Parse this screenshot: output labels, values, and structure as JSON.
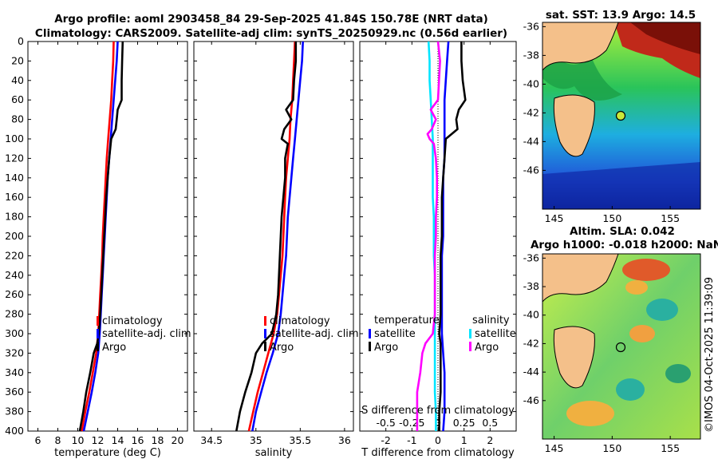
{
  "title": {
    "line1": "Argo profile: aoml 2903458_84 29-Sep-2025 41.84S 150.78E (NRT data)",
    "line2": "Climatology: CARS2009. Satellite-adj clim: synTS_20250929.nc (0.56d earlier)"
  },
  "y_ticks": [
    "0",
    "20",
    "40",
    "60",
    "80",
    "100",
    "120",
    "140",
    "160",
    "180",
    "200",
    "220",
    "240",
    "260",
    "280",
    "300",
    "320",
    "340",
    "360",
    "380",
    "400"
  ],
  "legend": {
    "clim": "climatology",
    "sat": "satellite-adj. clim",
    "argo": "Argo",
    "temperature": "temperature",
    "salinity": "salinity",
    "satellite": "satellite",
    "argo2": "Argo"
  },
  "colors": {
    "clim": "#ff0000",
    "sat": "#0000ff",
    "argo": "#000000",
    "sat_s": "#00e5ff",
    "argo_s": "#ff00ff"
  },
  "maps": {
    "sst_title": "sat. SST: 13.9 Argo: 14.5",
    "sla_title1": "Altim. SLA: 0.042",
    "sla_title2": "Argo h1000: -0.018 h2000: NaN",
    "y_ticks": [
      "-36",
      "-38",
      "-40",
      "-42",
      "-44",
      "-46"
    ],
    "x_ticks": [
      "145",
      "150",
      "155"
    ]
  },
  "credit": "©IMOS 04-Oct-2025 11:39:09",
  "chart_data": [
    {
      "type": "line",
      "xlabel": "temperature (deg C)",
      "ylabel": "depth",
      "xlim": [
        5,
        21
      ],
      "ylim": [
        400,
        0
      ],
      "x_ticks": [
        "6",
        "8",
        "10",
        "12",
        "14",
        "16",
        "18",
        "20"
      ],
      "series": [
        {
          "name": "climatology",
          "key": "clim",
          "depth": [
            0,
            20,
            40,
            60,
            80,
            100,
            120,
            140,
            160,
            180,
            200,
            220,
            240,
            260,
            280,
            300,
            320,
            340,
            360,
            380,
            400
          ],
          "values": [
            13.6,
            13.55,
            13.45,
            13.35,
            13.2,
            13.05,
            12.9,
            12.8,
            12.7,
            12.6,
            12.5,
            12.45,
            12.35,
            12.25,
            12.15,
            12.05,
            11.85,
            11.5,
            11.15,
            10.75,
            10.4
          ]
        },
        {
          "name": "satellite-adj. clim",
          "key": "sat",
          "depth": [
            0,
            20,
            40,
            60,
            80,
            100,
            120,
            140,
            160,
            180,
            200,
            220,
            240,
            260,
            280,
            300,
            320,
            340,
            360,
            380,
            400
          ],
          "values": [
            14.0,
            13.9,
            13.75,
            13.6,
            13.45,
            13.3,
            13.15,
            13.0,
            12.9,
            12.8,
            12.7,
            12.6,
            12.5,
            12.4,
            12.3,
            12.2,
            12.05,
            11.75,
            11.4,
            11.0,
            10.6
          ]
        },
        {
          "name": "Argo",
          "key": "argo",
          "depth": [
            0,
            20,
            40,
            60,
            70,
            80,
            90,
            100,
            120,
            140,
            160,
            180,
            200,
            220,
            240,
            260,
            280,
            300,
            310,
            320,
            340,
            360,
            380,
            400
          ],
          "values": [
            14.5,
            14.45,
            14.4,
            14.4,
            14.0,
            13.9,
            13.8,
            13.35,
            13.15,
            13.0,
            12.85,
            12.75,
            12.65,
            12.55,
            12.45,
            12.35,
            12.25,
            12.1,
            11.95,
            11.6,
            11.25,
            10.85,
            10.55,
            10.2
          ]
        }
      ]
    },
    {
      "type": "line",
      "xlabel": "salinity",
      "ylabel": "depth",
      "xlim": [
        34.3,
        36.1
      ],
      "ylim": [
        400,
        0
      ],
      "x_ticks": [
        "34.5",
        "35",
        "35.5",
        "36"
      ],
      "series": [
        {
          "name": "climatology",
          "key": "clim",
          "depth": [
            0,
            20,
            40,
            60,
            80,
            100,
            120,
            140,
            160,
            180,
            200,
            220,
            240,
            260,
            280,
            300,
            320,
            340,
            360,
            380,
            400
          ],
          "values": [
            35.44,
            35.43,
            35.42,
            35.41,
            35.39,
            35.38,
            35.36,
            35.34,
            35.33,
            35.32,
            35.31,
            35.3,
            35.28,
            35.26,
            35.24,
            35.2,
            35.14,
            35.08,
            35.02,
            34.97,
            34.92
          ]
        },
        {
          "name": "satellite-adj. clim",
          "key": "sat",
          "depth": [
            0,
            20,
            40,
            60,
            80,
            100,
            120,
            140,
            160,
            180,
            200,
            220,
            240,
            260,
            280,
            300,
            320,
            340,
            360,
            380,
            400
          ],
          "values": [
            35.53,
            35.52,
            35.5,
            35.48,
            35.46,
            35.44,
            35.42,
            35.4,
            35.38,
            35.36,
            35.35,
            35.34,
            35.32,
            35.3,
            35.28,
            35.25,
            35.19,
            35.12,
            35.06,
            35.0,
            34.96
          ]
        },
        {
          "name": "Argo",
          "key": "argo",
          "depth": [
            0,
            20,
            40,
            60,
            70,
            80,
            90,
            100,
            105,
            120,
            140,
            160,
            180,
            200,
            220,
            240,
            260,
            280,
            300,
            310,
            320,
            340,
            360,
            380,
            400
          ],
          "values": [
            35.45,
            35.45,
            35.43,
            35.42,
            35.34,
            35.4,
            35.32,
            35.29,
            35.36,
            35.33,
            35.33,
            35.31,
            35.29,
            35.28,
            35.27,
            35.26,
            35.25,
            35.23,
            35.18,
            35.07,
            35.0,
            34.95,
            34.88,
            34.82,
            34.78
          ]
        }
      ]
    },
    {
      "type": "line",
      "xlabel": "T difference from climatology",
      "x2label": "S difference from climatology",
      "ylabel": "depth",
      "xlim": [
        -3,
        3
      ],
      "ylim": [
        400,
        0
      ],
      "x_ticks": [
        "-2",
        "-1",
        "0",
        "1",
        "2"
      ],
      "x2_ticks": [
        "-0.5",
        "-0.25",
        "0",
        "0.25",
        "0.5"
      ],
      "series": [
        {
          "name": "temperature satellite",
          "key": "sat",
          "depth": [
            0,
            20,
            40,
            60,
            80,
            100,
            120,
            140,
            160,
            180,
            200,
            220,
            240,
            260,
            280,
            300,
            320,
            340,
            360,
            380,
            400
          ],
          "values": [
            0.4,
            0.35,
            0.3,
            0.25,
            0.25,
            0.25,
            0.25,
            0.2,
            0.2,
            0.2,
            0.2,
            0.15,
            0.15,
            0.15,
            0.15,
            0.15,
            0.2,
            0.25,
            0.25,
            0.25,
            0.2
          ]
        },
        {
          "name": "temperature Argo",
          "key": "argo",
          "depth": [
            0,
            20,
            40,
            60,
            70,
            80,
            90,
            100,
            120,
            140,
            160,
            180,
            200,
            220,
            240,
            260,
            280,
            300,
            310,
            320,
            340,
            360,
            380,
            400
          ],
          "values": [
            0.9,
            0.9,
            0.95,
            1.05,
            0.8,
            0.7,
            0.75,
            0.3,
            0.25,
            0.2,
            0.15,
            0.15,
            0.15,
            0.1,
            0.1,
            0.1,
            0.1,
            0.05,
            0.1,
            0.1,
            0.1,
            0.1,
            0.05,
            0.05
          ]
        },
        {
          "name": "salinity satellite",
          "key": "sat_s",
          "depth": [
            0,
            20,
            40,
            60,
            80,
            100,
            120,
            140,
            160,
            180,
            200,
            220,
            240,
            260,
            280,
            300,
            320,
            340,
            360,
            380,
            400
          ],
          "values": [
            -0.09,
            -0.08,
            -0.08,
            -0.07,
            -0.06,
            -0.05,
            -0.05,
            -0.05,
            -0.05,
            -0.04,
            -0.04,
            -0.04,
            -0.03,
            -0.03,
            -0.03,
            -0.03,
            -0.03,
            -0.03,
            -0.03,
            -0.02,
            -0.02
          ]
        },
        {
          "name": "salinity Argo",
          "key": "argo_s",
          "depth": [
            0,
            20,
            40,
            60,
            70,
            80,
            90,
            95,
            100,
            105,
            120,
            140,
            160,
            180,
            200,
            220,
            240,
            260,
            280,
            300,
            310,
            320,
            340,
            360,
            380,
            400
          ],
          "values": [
            0.0,
            0.02,
            0.01,
            0.0,
            -0.07,
            -0.02,
            -0.06,
            -0.1,
            -0.08,
            -0.04,
            -0.02,
            -0.01,
            -0.01,
            -0.02,
            -0.02,
            -0.03,
            -0.03,
            -0.03,
            -0.03,
            -0.05,
            -0.12,
            -0.15,
            -0.17,
            -0.2,
            -0.2,
            -0.2
          ]
        }
      ]
    }
  ]
}
